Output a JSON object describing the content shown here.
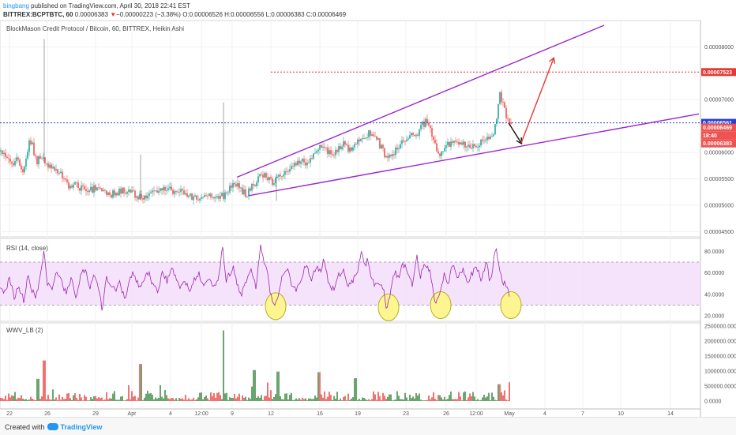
{
  "header": {
    "author": "bingbang",
    "published_text": "published on TradingView.com, April 30, 2018 22:41 EST",
    "symbol_line": "BITTREX:BCPTBTC, 60",
    "last_price": "0.00006383",
    "arrow": "▼",
    "change": "−0.00000223 (−3.38%)",
    "ohlc": "O:0.00006526 H:0.00006556 L:0.00006383 C:0.00006469"
  },
  "footer": {
    "created_with": "Created with",
    "brand": "TradingView"
  },
  "colors": {
    "up": "#26a69a",
    "down": "#ef5350",
    "channel": "#9c27d0",
    "target_line": "#e53935",
    "blue_line": "#2a3fcf",
    "rsi": "#9c27b0",
    "rsi_band": "#f3dcfa",
    "vol_up": "#2e7d32",
    "vol_down": "#e53935",
    "circle_fill": "#fdf58f",
    "circle_stroke": "#b7ad25"
  },
  "chart_data": [
    {
      "type": "candlestick",
      "title": "BlockMason Credit Protocol / Bitcoin, 60, BITTREX, Heikin Ashi",
      "ylim": [
        4.4e-05,
        8.5e-05
      ],
      "y_ticks": [
        "0.00008000",
        "0.00007000",
        "0.00006000",
        "0.00005500",
        "0.00005000",
        "0.00004500"
      ],
      "x_ticks": [
        "22",
        "26",
        "29",
        "Apr",
        "4",
        "12:00",
        "9",
        "12",
        "16",
        "19",
        "23",
        "26",
        "12:00",
        "May",
        "4",
        "7",
        "10",
        "14"
      ],
      "price_anchors": [
        [
          0,
          60.2
        ],
        [
          8,
          59.0
        ],
        [
          18,
          57.8
        ],
        [
          22,
          58.8
        ],
        [
          30,
          56.4
        ],
        [
          36,
          61.5
        ],
        [
          40,
          62.0
        ],
        [
          46,
          58.2
        ],
        [
          52,
          59.0
        ],
        [
          60,
          57.6
        ],
        [
          66,
          56.5
        ],
        [
          72,
          57.0
        ],
        [
          80,
          55.2
        ],
        [
          88,
          53.5
        ],
        [
          96,
          53.9
        ],
        [
          104,
          53.1
        ],
        [
          110,
          52.3
        ],
        [
          120,
          53.3
        ],
        [
          132,
          53.0
        ],
        [
          140,
          52.0
        ],
        [
          150,
          52.5
        ],
        [
          160,
          52.8
        ],
        [
          170,
          52.0
        ],
        [
          180,
          51.3
        ],
        [
          190,
          52.0
        ],
        [
          198,
          52.4
        ],
        [
          206,
          53.2
        ],
        [
          214,
          53.6
        ],
        [
          222,
          52.1
        ],
        [
          230,
          52.8
        ],
        [
          240,
          51.6
        ],
        [
          250,
          51.5
        ],
        [
          262,
          51.9
        ],
        [
          272,
          51.8
        ],
        [
          282,
          51.6
        ],
        [
          288,
          52.4
        ],
        [
          296,
          54.5
        ],
        [
          304,
          53.0
        ],
        [
          312,
          52.0
        ],
        [
          320,
          53.6
        ],
        [
          330,
          55.4
        ],
        [
          336,
          56.0
        ],
        [
          344,
          54.2
        ],
        [
          350,
          55.0
        ],
        [
          356,
          55.8
        ],
        [
          364,
          56.4
        ],
        [
          372,
          57.3
        ],
        [
          380,
          58.6
        ],
        [
          388,
          58.0
        ],
        [
          396,
          59.4
        ],
        [
          404,
          61.0
        ],
        [
          412,
          60.5
        ],
        [
          420,
          59.6
        ],
        [
          428,
          60.4
        ],
        [
          436,
          61.6
        ],
        [
          444,
          60.2
        ],
        [
          452,
          62.2
        ],
        [
          460,
          63.2
        ],
        [
          468,
          63.5
        ],
        [
          476,
          63.0
        ],
        [
          484,
          60.5
        ],
        [
          490,
          58.8
        ],
        [
          496,
          59.5
        ],
        [
          504,
          61.0
        ],
        [
          512,
          62.2
        ],
        [
          520,
          63.0
        ],
        [
          528,
          63.4
        ],
        [
          536,
          65.4
        ],
        [
          542,
          66.2
        ],
        [
          546,
          64.0
        ],
        [
          550,
          61.8
        ],
        [
          556,
          59.5
        ],
        [
          560,
          59.9
        ],
        [
          568,
          61.5
        ],
        [
          576,
          62.0
        ],
        [
          584,
          61.2
        ],
        [
          592,
          61.6
        ],
        [
          600,
          60.8
        ],
        [
          606,
          61.8
        ],
        [
          612,
          62.5
        ],
        [
          618,
          63.0
        ],
        [
          624,
          63.6
        ],
        [
          628,
          65.4
        ],
        [
          632,
          71.2
        ],
        [
          636,
          69.5
        ],
        [
          640,
          67.2
        ],
        [
          644,
          66.2
        ],
        [
          648,
          64.6
        ]
      ],
      "spikes": [
        {
          "x": 56,
          "high": 81.5,
          "low": 58.0
        },
        {
          "x": 178,
          "high": 59.6,
          "low": 51.0
        },
        {
          "x": 283,
          "high": 69.5,
          "low": 51.6
        },
        {
          "x": 350,
          "high": 56.0,
          "low": 50.8
        }
      ],
      "resistance_line": {
        "x": [
          0,
          887
        ],
        "price": 75.23,
        "label": "0.00007523"
      },
      "horizontal_line": {
        "x": [
          0,
          887
        ],
        "price": 65.61,
        "label": "0.00006561"
      },
      "current_price": {
        "price": 63.83,
        "label": "0.00006383",
        "countdown": "18:40",
        "close_label": "0.00006469",
        "close_price": 64.69
      },
      "channel_upper": {
        "x": [
          300,
          765
        ],
        "price": [
          55.3,
          84.1
        ]
      },
      "channel_lower": {
        "x": [
          315,
          885
        ],
        "price": [
          51.8,
          67.3
        ]
      },
      "arrows": [
        {
          "color": "black",
          "from": [
            644,
            65.6
          ],
          "to": [
            660,
            61.8
          ]
        },
        {
          "color": "red",
          "from": [
            660,
            61.8
          ],
          "to": [
            701,
            77.8
          ]
        }
      ]
    },
    {
      "type": "line",
      "title": "RSI (14, close)",
      "ylim": [
        15,
        92
      ],
      "y_ticks": [
        "80.0000",
        "60.0000",
        "40.0000",
        "20.0000"
      ],
      "band": [
        30,
        70
      ],
      "anchors": [
        [
          0,
          48
        ],
        [
          6,
          41
        ],
        [
          12,
          55
        ],
        [
          18,
          38
        ],
        [
          24,
          47
        ],
        [
          30,
          34
        ],
        [
          36,
          60
        ],
        [
          40,
          45
        ],
        [
          46,
          38
        ],
        [
          52,
          64
        ],
        [
          56,
          82
        ],
        [
          60,
          50
        ],
        [
          66,
          44
        ],
        [
          72,
          61
        ],
        [
          78,
          52
        ],
        [
          84,
          40
        ],
        [
          90,
          56
        ],
        [
          96,
          38
        ],
        [
          102,
          57
        ],
        [
          108,
          64
        ],
        [
          114,
          46
        ],
        [
          120,
          58
        ],
        [
          126,
          40
        ],
        [
          130,
          23
        ],
        [
          134,
          56
        ],
        [
          140,
          50
        ],
        [
          146,
          44
        ],
        [
          152,
          52
        ],
        [
          158,
          34
        ],
        [
          164,
          56
        ],
        [
          170,
          60
        ],
        [
          176,
          46
        ],
        [
          182,
          52
        ],
        [
          188,
          60
        ],
        [
          194,
          48
        ],
        [
          200,
          44
        ],
        [
          206,
          61
        ],
        [
          212,
          52
        ],
        [
          218,
          66
        ],
        [
          222,
          56
        ],
        [
          228,
          47
        ],
        [
          234,
          52
        ],
        [
          240,
          44
        ],
        [
          246,
          53
        ],
        [
          252,
          60
        ],
        [
          258,
          47
        ],
        [
          264,
          56
        ],
        [
          270,
          48
        ],
        [
          276,
          50
        ],
        [
          282,
          86
        ],
        [
          286,
          52
        ],
        [
          290,
          58
        ],
        [
          296,
          66
        ],
        [
          300,
          48
        ],
        [
          306,
          41
        ],
        [
          312,
          54
        ],
        [
          318,
          62
        ],
        [
          324,
          47
        ],
        [
          330,
          84
        ],
        [
          334,
          72
        ],
        [
          338,
          64
        ],
        [
          342,
          40
        ],
        [
          348,
          28
        ],
        [
          352,
          38
        ],
        [
          358,
          58
        ],
        [
          364,
          64
        ],
        [
          370,
          48
        ],
        [
          376,
          44
        ],
        [
          382,
          56
        ],
        [
          388,
          70
        ],
        [
          394,
          52
        ],
        [
          400,
          66
        ],
        [
          406,
          60
        ],
        [
          410,
          75
        ],
        [
          416,
          50
        ],
        [
          422,
          44
        ],
        [
          428,
          56
        ],
        [
          434,
          64
        ],
        [
          440,
          48
        ],
        [
          446,
          52
        ],
        [
          452,
          60
        ],
        [
          458,
          82
        ],
        [
          462,
          66
        ],
        [
          466,
          74
        ],
        [
          470,
          54
        ],
        [
          476,
          48
        ],
        [
          482,
          50
        ],
        [
          486,
          44
        ],
        [
          490,
          25
        ],
        [
          494,
          40
        ],
        [
          500,
          62
        ],
        [
          506,
          54
        ],
        [
          510,
          70
        ],
        [
          516,
          60
        ],
        [
          522,
          48
        ],
        [
          528,
          74
        ],
        [
          532,
          56
        ],
        [
          538,
          70
        ],
        [
          544,
          62
        ],
        [
          548,
          44
        ],
        [
          552,
          30
        ],
        [
          556,
          40
        ],
        [
          562,
          58
        ],
        [
          568,
          52
        ],
        [
          574,
          70
        ],
        [
          580,
          56
        ],
        [
          586,
          64
        ],
        [
          592,
          50
        ],
        [
          598,
          60
        ],
        [
          604,
          64
        ],
        [
          610,
          52
        ],
        [
          616,
          74
        ],
        [
          620,
          48
        ],
        [
          624,
          66
        ],
        [
          628,
          85
        ],
        [
          632,
          68
        ],
        [
          636,
          52
        ],
        [
          640,
          50
        ],
        [
          646,
          36
        ]
      ],
      "highlight_circles": [
        [
          349,
          29
        ],
        [
          492,
          28
        ],
        [
          558,
          30
        ],
        [
          647,
          30
        ]
      ]
    },
    {
      "type": "bar",
      "title": "WWV_LB (2)",
      "ylim": [
        0,
        2600000
      ],
      "y_ticks": [
        "2500000.0000",
        "2000000.0000",
        "1500000.0000",
        "1000000.0000",
        "500000.0000",
        "0.0000"
      ],
      "spikes": [
        [
          48,
          740000
        ],
        [
          56,
          1350000
        ],
        [
          178,
          1230000
        ],
        [
          283,
          2350000
        ],
        [
          322,
          1030000
        ],
        [
          352,
          980000
        ],
        [
          404,
          960000
        ],
        [
          450,
          760000
        ],
        [
          632,
          560000
        ]
      ]
    }
  ]
}
